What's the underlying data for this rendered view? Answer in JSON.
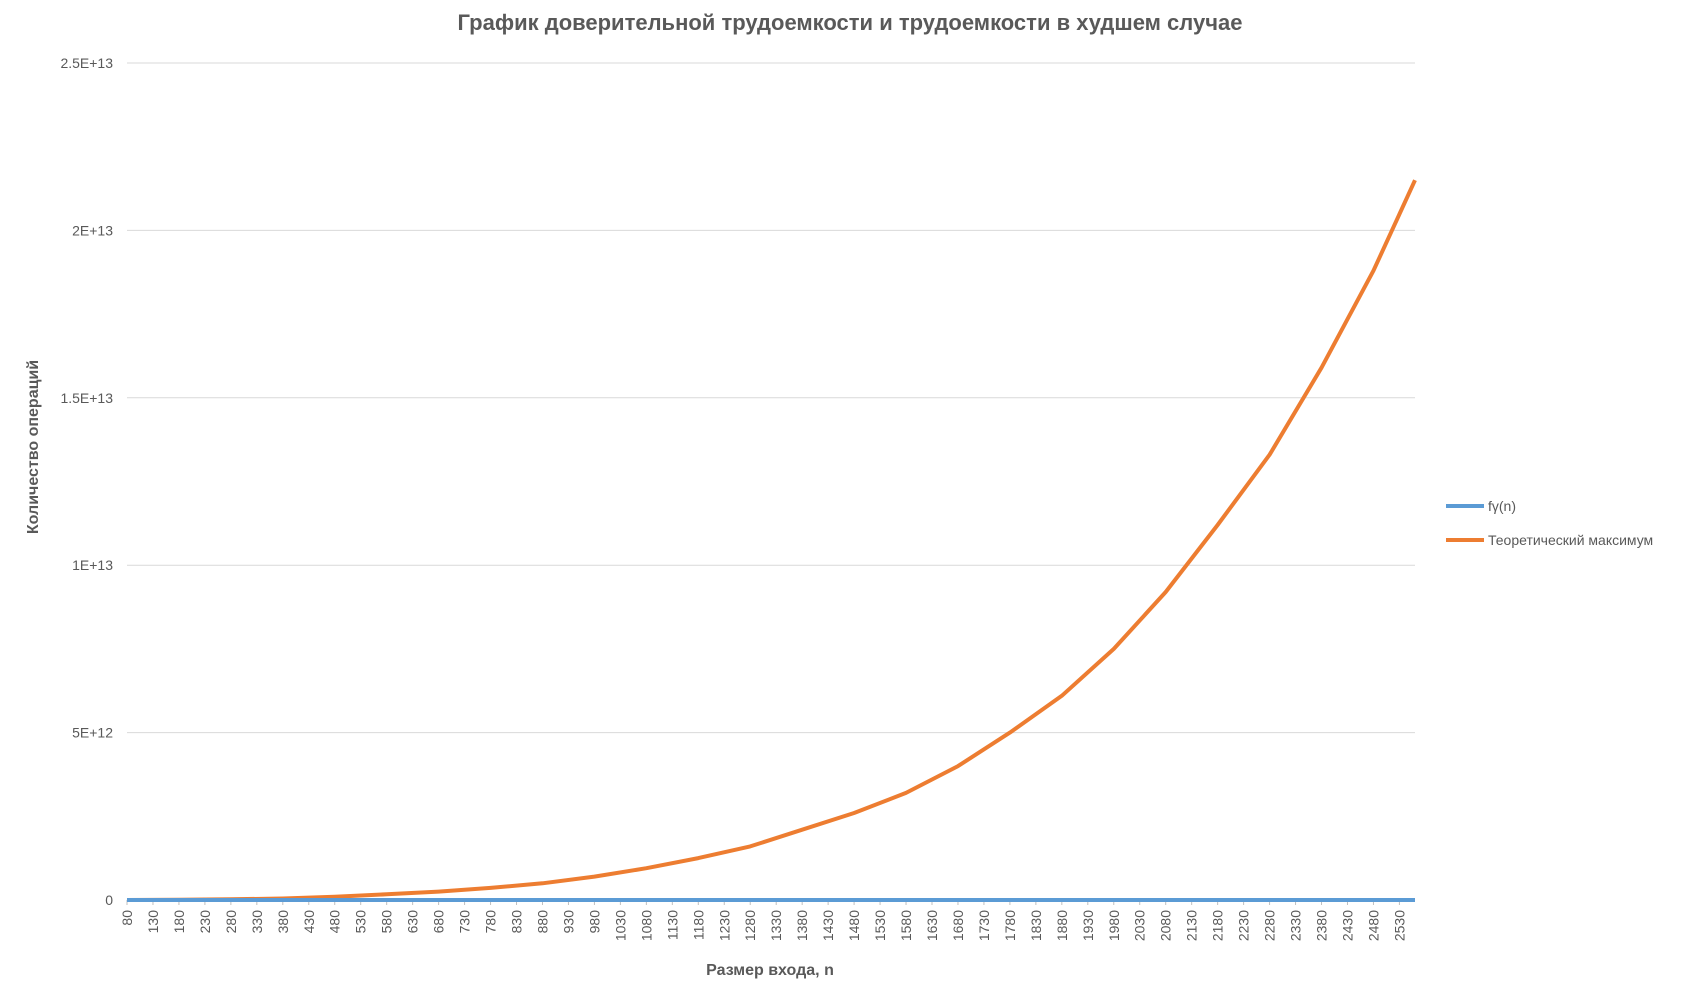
{
  "chart_data": {
    "type": "line",
    "title": "График доверительной трудоемкости и трудоемкости в худшем случае",
    "xlabel": "Размер входа, n",
    "ylabel": "Количество операций",
    "ylim": [
      0,
      25000000000000
    ],
    "yticks": [
      {
        "value": 0,
        "label": "0"
      },
      {
        "value": 5000000000000,
        "label": "5E+12"
      },
      {
        "value": 10000000000000,
        "label": "1E+13"
      },
      {
        "value": 15000000000000,
        "label": "1.5E+13"
      },
      {
        "value": 20000000000000,
        "label": "2E+13"
      },
      {
        "value": 25000000000000,
        "label": "2.5E+13"
      }
    ],
    "xlim": [
      80,
      2560
    ],
    "xticks": [
      80,
      130,
      180,
      230,
      280,
      330,
      380,
      430,
      480,
      530,
      580,
      630,
      680,
      730,
      780,
      830,
      880,
      930,
      980,
      1030,
      1080,
      1130,
      1180,
      1230,
      1280,
      1330,
      1380,
      1430,
      1480,
      1530,
      1580,
      1630,
      1680,
      1730,
      1780,
      1830,
      1880,
      1930,
      1980,
      2030,
      2080,
      2130,
      2180,
      2230,
      2280,
      2330,
      2380,
      2430,
      2480,
      2530
    ],
    "grid": true,
    "legend_position": "right",
    "series": [
      {
        "name": "fγ(n)",
        "color": "#5B9BD5",
        "x": [
          80,
          580,
          1080,
          1580,
          2080,
          2560
        ],
        "values": [
          0,
          0,
          0,
          0,
          0,
          0
        ]
      },
      {
        "name": "Теоретический максимум",
        "color": "#ED7D31",
        "x": [
          80,
          180,
          280,
          380,
          480,
          580,
          680,
          780,
          880,
          980,
          1080,
          1180,
          1280,
          1380,
          1480,
          1580,
          1680,
          1780,
          1880,
          1980,
          2080,
          2180,
          2280,
          2380,
          2480,
          2560
        ],
        "values": [
          1000000000,
          8000000000,
          20000000000,
          45000000000,
          100000000000,
          170000000000,
          250000000000,
          360000000000,
          500000000000,
          700000000000,
          950000000000,
          1250000000000,
          1600000000000,
          2100000000000,
          2600000000000,
          3200000000000,
          4000000000000,
          5000000000000,
          6100000000000,
          7500000000000,
          9200000000000,
          11200000000000,
          13300000000000,
          15900000000000,
          18800000000000,
          21500000000000
        ]
      }
    ]
  }
}
